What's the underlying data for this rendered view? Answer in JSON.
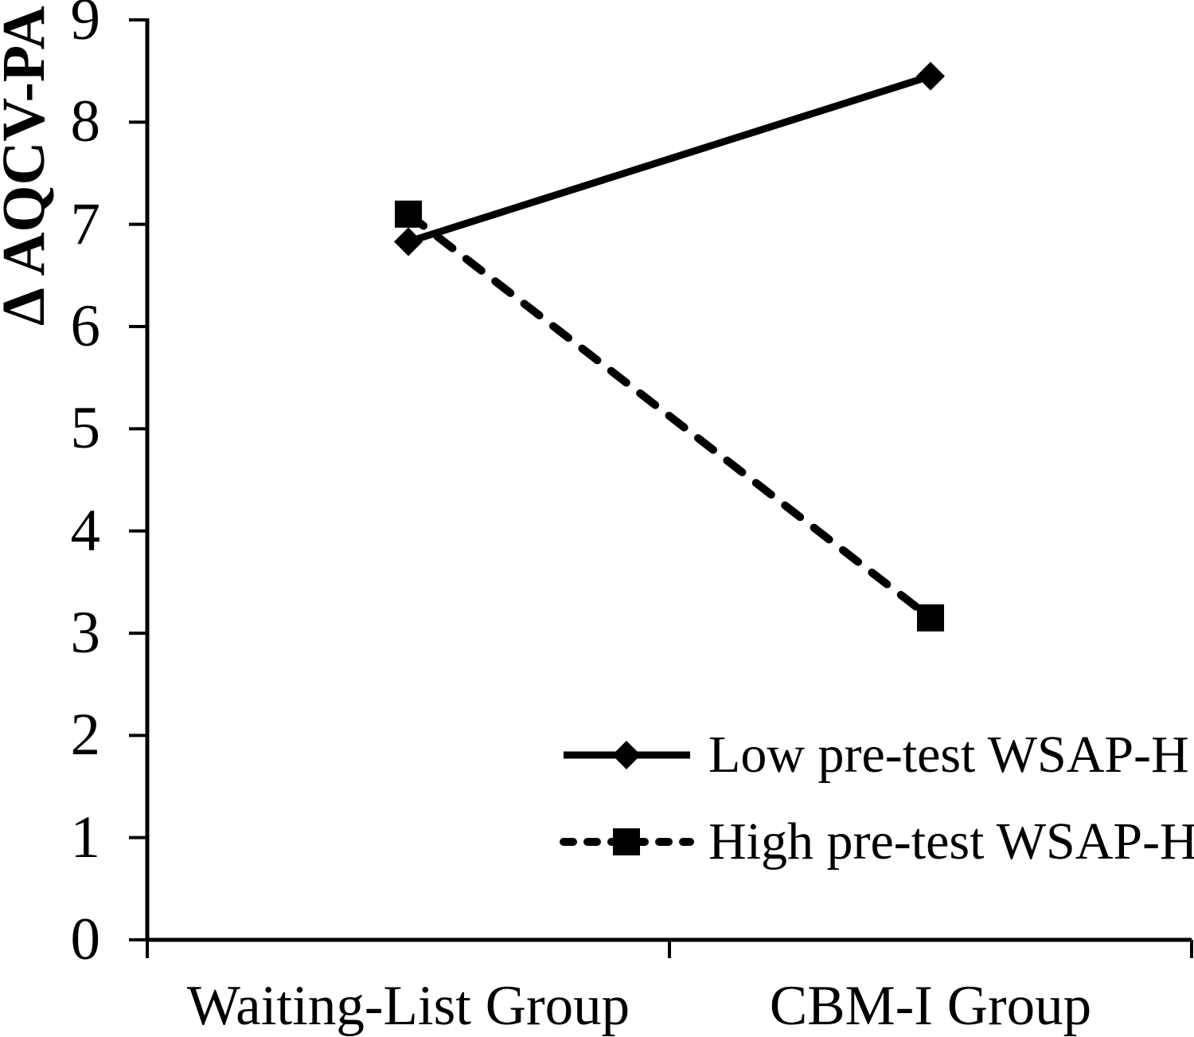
{
  "figure": {
    "background_color": "#ffffff",
    "ink_color": "#000000"
  },
  "chart_data": {
    "type": "line",
    "title": "",
    "xlabel": "",
    "ylabel": "Δ AQCV-PA",
    "categories": [
      "Waiting-List Group",
      "CBM-I Group"
    ],
    "series": [
      {
        "name": "Low pre-test WSAP-H",
        "line_style": "solid",
        "marker": "diamond",
        "color": "#000000",
        "values": [
          6.83,
          8.45
        ]
      },
      {
        "name": "High pre-test WSAP-H",
        "line_style": "dashed",
        "marker": "square",
        "color": "#000000",
        "values": [
          7.1,
          3.15
        ]
      }
    ],
    "y_axis": {
      "min": 0,
      "max": 9,
      "tick_step": 1,
      "tick_labels": [
        "0",
        "1",
        "2",
        "3",
        "4",
        "5",
        "6",
        "7",
        "8",
        "9"
      ]
    },
    "grid": false,
    "legend_position": "lower-right"
  }
}
